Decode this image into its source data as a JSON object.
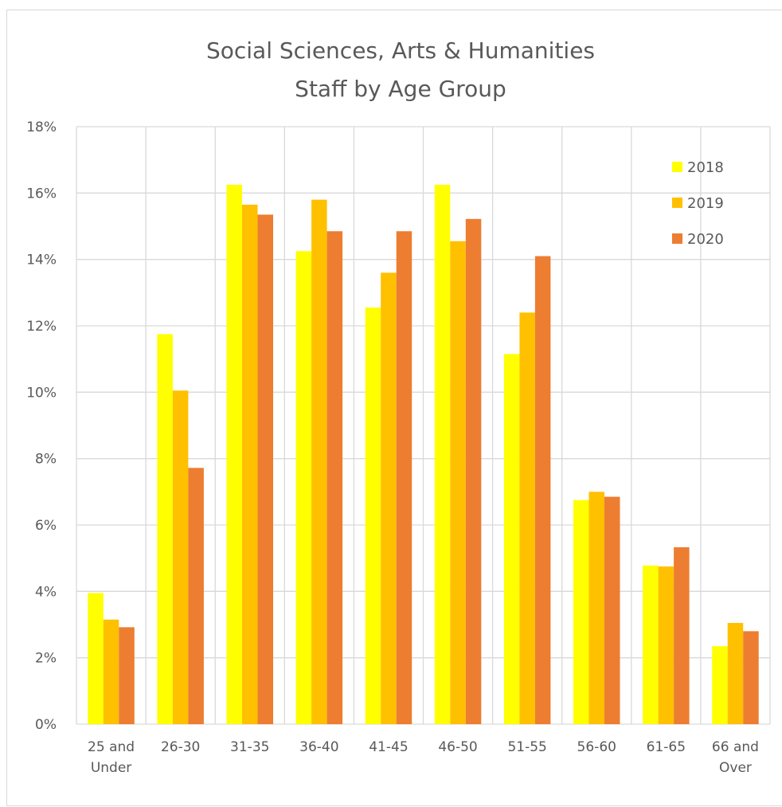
{
  "chart_data": {
    "type": "bar",
    "title": "Social Sciences, Arts & Humanities",
    "subtitle": "Staff by Age Group",
    "xlabel": "",
    "ylabel": "",
    "ylim": [
      0,
      18
    ],
    "y_ticks": [
      "0%",
      "2%",
      "4%",
      "6%",
      "8%",
      "10%",
      "12%",
      "14%",
      "16%",
      "18%"
    ],
    "y_tick_values": [
      0,
      2,
      4,
      6,
      8,
      10,
      12,
      14,
      16,
      18
    ],
    "grid": true,
    "legend_position": "top-right",
    "categories": [
      [
        "25 and",
        "Under"
      ],
      [
        "26-30"
      ],
      [
        "31-35"
      ],
      [
        "36-40"
      ],
      [
        "41-45"
      ],
      [
        "46-50"
      ],
      [
        "51-55"
      ],
      [
        "56-60"
      ],
      [
        "61-65"
      ],
      [
        "66 and",
        "Over"
      ]
    ],
    "series": [
      {
        "name": "2018",
        "color": "#ffff00",
        "values": [
          3.95,
          11.75,
          16.25,
          14.25,
          12.55,
          16.25,
          11.15,
          6.75,
          4.78,
          2.35
        ]
      },
      {
        "name": "2019",
        "color": "#ffc000",
        "values": [
          3.15,
          10.05,
          15.65,
          15.8,
          13.6,
          14.55,
          12.4,
          7.0,
          4.75,
          3.05
        ]
      },
      {
        "name": "2020",
        "color": "#ed7d31",
        "values": [
          2.92,
          7.72,
          15.35,
          14.85,
          14.85,
          15.22,
          14.1,
          6.85,
          5.33,
          2.8
        ]
      }
    ]
  }
}
